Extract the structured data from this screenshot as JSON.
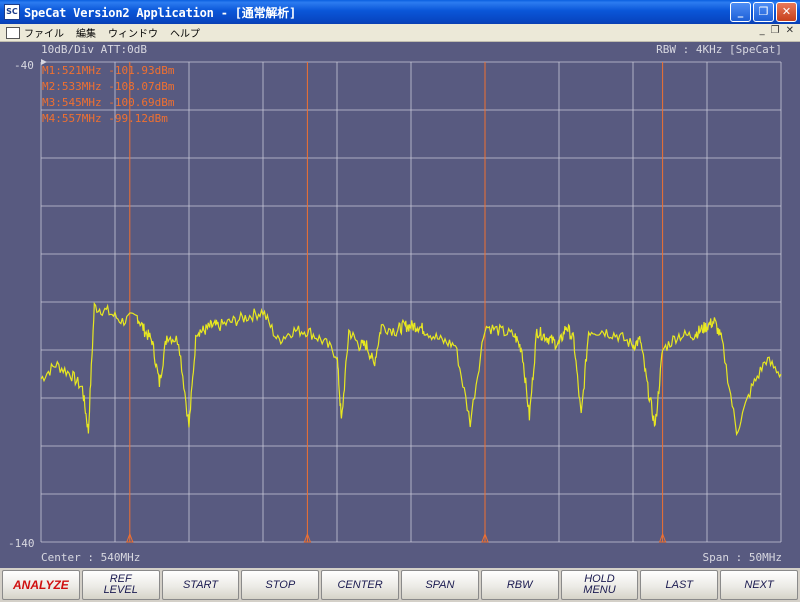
{
  "window": {
    "title": "SpeCat Version2 Application - [通常解析]",
    "app_icon_text": "SC",
    "buttons": [
      "minimize",
      "restore",
      "close"
    ]
  },
  "menu": {
    "items": [
      "ファイル",
      "編集",
      "ウィンドウ",
      "ヘルプ"
    ]
  },
  "display": {
    "scale_label": "10dB/Div  ATT:0dB",
    "rbw_label": "RBW : 4KHz [SpeCat]",
    "ref_top": "-40",
    "ref_bottom": "-140",
    "center_label": "Center : 540MHz",
    "span_label": "Span : 50MHz",
    "background_color": "#585a80",
    "grid_color": "#c8c8d8",
    "trace_color": "#e8e820",
    "marker_color": "#f07030",
    "markers": [
      {
        "id": "M1",
        "label": "M1:521MHz -101.93dBm",
        "freq_mhz": 521,
        "level_dbm": -101.93
      },
      {
        "id": "M2",
        "label": "M2:533MHz -108.07dBm",
        "freq_mhz": 533,
        "level_dbm": -108.07
      },
      {
        "id": "M3",
        "label": "M3:545MHz -100.69dBm",
        "freq_mhz": 545,
        "level_dbm": -100.69
      },
      {
        "id": "M4",
        "label": "M4:557MHz -99.12dBm",
        "freq_mhz": 557,
        "level_dbm": -99.12
      }
    ]
  },
  "chart_data": {
    "type": "line",
    "title": "",
    "xlabel": "",
    "ylabel": "",
    "xlim": [
      515,
      565
    ],
    "ylim": [
      -140,
      -40
    ],
    "x_divisions": 10,
    "y_divisions": 10,
    "grid": true,
    "series": [
      {
        "x": [
          515,
          516,
          517,
          517.8,
          518.2,
          518.6,
          519.5,
          520.5,
          521.5,
          522,
          522.5,
          523,
          523.5,
          524.3,
          525,
          525.5,
          526,
          526.5,
          527,
          528,
          529,
          530,
          531,
          532,
          533,
          534,
          535,
          535.3,
          535.8,
          536.5,
          537,
          537.5,
          538,
          539,
          539.5,
          540,
          540.5,
          541,
          542,
          543,
          544,
          545,
          546,
          547,
          547.5,
          548,
          548.5,
          549,
          549.5,
          550,
          550.5,
          551,
          551.5,
          552,
          553,
          554,
          555,
          555.5,
          556,
          556.5,
          557,
          558,
          559,
          559.5,
          560,
          560.5,
          561,
          562,
          563,
          564,
          565
        ],
        "y": [
          -106,
          -103,
          -105,
          -108,
          -117,
          -91,
          -92,
          -94,
          -93,
          -96,
          -98,
          -107,
          -97,
          -98,
          -116,
          -96,
          -96,
          -95,
          -95,
          -94,
          -93,
          -92,
          -98,
          -96,
          -96,
          -98,
          -101,
          -115,
          -96,
          -99,
          -99,
          -103,
          -95,
          -96,
          -95,
          -95,
          -95,
          -96,
          -98,
          -99,
          -115,
          -95,
          -96,
          -97,
          -100,
          -114,
          -96,
          -97,
          -98,
          -99,
          -95,
          -98,
          -114,
          -96,
          -96,
          -97,
          -99,
          -98,
          -108,
          -116,
          -100,
          -97,
          -97,
          -96,
          -95,
          -94,
          -98,
          -117,
          -108,
          -102,
          -105
        ]
      }
    ]
  },
  "softkeys": [
    {
      "label": "ANALYZE",
      "active": true
    },
    {
      "label": "REF\nLEVEL",
      "active": false
    },
    {
      "label": "START",
      "active": false
    },
    {
      "label": "STOP",
      "active": false
    },
    {
      "label": "CENTER",
      "active": false
    },
    {
      "label": "SPAN",
      "active": false
    },
    {
      "label": "RBW",
      "active": false
    },
    {
      "label": "HOLD\nMENU",
      "active": false
    },
    {
      "label": "LAST",
      "active": false
    },
    {
      "label": "NEXT",
      "active": false
    }
  ]
}
